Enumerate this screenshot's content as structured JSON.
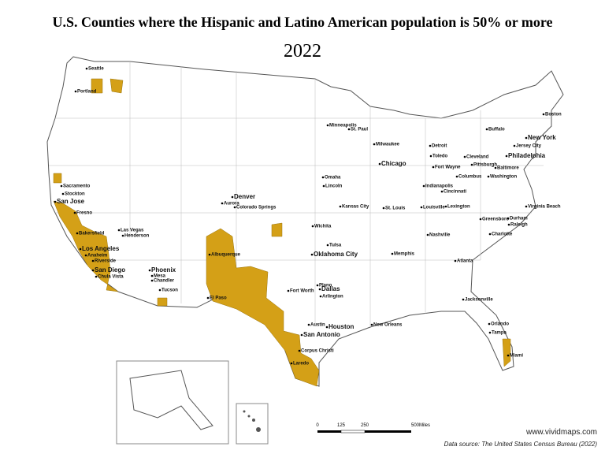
{
  "header": {
    "title": "U.S. Counties where the Hispanic and Latino American population is 50% or more",
    "subtitle": "2022"
  },
  "cities": [
    {
      "label": "Seattle"
    },
    {
      "label": "Portland"
    },
    {
      "label": "Sacramento"
    },
    {
      "label": "Stockton"
    },
    {
      "label": "San Jose"
    },
    {
      "label": "Fresno"
    },
    {
      "label": "Bakersfield"
    },
    {
      "label": "Los Angeles"
    },
    {
      "label": "Anaheim"
    },
    {
      "label": "Riverside"
    },
    {
      "label": "San Diego"
    },
    {
      "label": "Chula Vista"
    },
    {
      "label": "Las Vegas"
    },
    {
      "label": "Henderson"
    },
    {
      "label": "Phoenix"
    },
    {
      "label": "Mesa"
    },
    {
      "label": "Chandler"
    },
    {
      "label": "Tucson"
    },
    {
      "label": "Denver"
    },
    {
      "label": "Aurora"
    },
    {
      "label": "Colorado Springs"
    },
    {
      "label": "Albuquerque"
    },
    {
      "label": "El Paso"
    },
    {
      "label": "Wichita"
    },
    {
      "label": "Omaha"
    },
    {
      "label": "Lincoln"
    },
    {
      "label": "Kansas City"
    },
    {
      "label": "Tulsa"
    },
    {
      "label": "Oklahoma City"
    },
    {
      "label": "Dallas"
    },
    {
      "label": "Fort Worth"
    },
    {
      "label": "Plano"
    },
    {
      "label": "Arlington"
    },
    {
      "label": "Austin"
    },
    {
      "label": "San Antonio"
    },
    {
      "label": "Houston"
    },
    {
      "label": "Corpus Christi"
    },
    {
      "label": "Laredo"
    },
    {
      "label": "New Orleans"
    },
    {
      "label": "Minneapolis"
    },
    {
      "label": "St. Paul"
    },
    {
      "label": "Milwaukee"
    },
    {
      "label": "Chicago"
    },
    {
      "label": "Detroit"
    },
    {
      "label": "Toledo"
    },
    {
      "label": "Cleveland"
    },
    {
      "label": "Fort Wayne"
    },
    {
      "label": "Indianapolis"
    },
    {
      "label": "Cincinnati"
    },
    {
      "label": "Columbus"
    },
    {
      "label": "Louisville"
    },
    {
      "label": "Lexington"
    },
    {
      "label": "St. Louis"
    },
    {
      "label": "Memphis"
    },
    {
      "label": "Nashville"
    },
    {
      "label": "Atlanta"
    },
    {
      "label": "Jacksonville"
    },
    {
      "label": "Orlando"
    },
    {
      "label": "Tampa"
    },
    {
      "label": "Miami"
    },
    {
      "label": "Charlotte"
    },
    {
      "label": "Greensboro"
    },
    {
      "label": "Durham"
    },
    {
      "label": "Raleigh"
    },
    {
      "label": "Virginia Beach"
    },
    {
      "label": "Washington"
    },
    {
      "label": "Baltimore"
    },
    {
      "label": "Philadelphia"
    },
    {
      "label": "New York"
    },
    {
      "label": "Jersey City"
    },
    {
      "label": "Boston"
    },
    {
      "label": "Buffalo"
    },
    {
      "label": "Pittsburgh"
    }
  ],
  "scale": {
    "labels": [
      "0",
      "125",
      "250",
      "500Miles"
    ]
  },
  "footer": {
    "website": "www.vividmaps.com",
    "source": "Data source: The United States Census Bureau (2022)"
  }
}
